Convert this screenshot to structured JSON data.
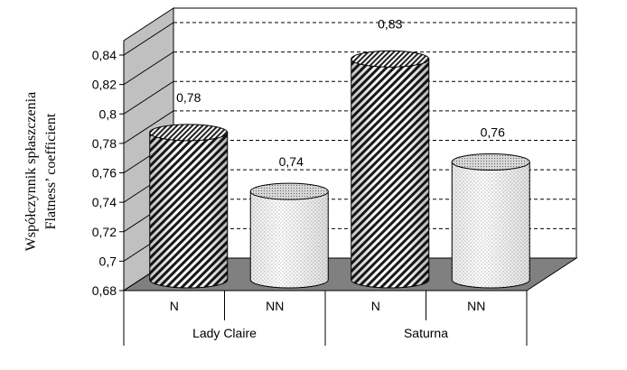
{
  "chart_data": {
    "type": "bar",
    "style": "3d-cylinder",
    "title": "",
    "xlabel": "",
    "ylabel_lines": [
      "Współczynnik  spłaszczenia",
      "Flatness’ coefficient"
    ],
    "ylim": [
      0.68,
      0.84
    ],
    "y_ticks": [
      "0,68",
      "0,7",
      "0,72",
      "0,74",
      "0,76",
      "0,78",
      "0,8",
      "0,82",
      "0,84"
    ],
    "groups": [
      {
        "label": "Lady Claire",
        "categories": [
          "N",
          "NN"
        ]
      },
      {
        "label": "Saturna",
        "categories": [
          "N",
          "NN"
        ]
      }
    ],
    "bars": [
      {
        "group": "Lady Claire",
        "category": "N",
        "value": 0.78,
        "label": "0,78",
        "pattern": "diagonal"
      },
      {
        "group": "Lady Claire",
        "category": "NN",
        "value": 0.74,
        "label": "0,74",
        "pattern": "dots"
      },
      {
        "group": "Saturna",
        "category": "N",
        "value": 0.83,
        "label": "0,83",
        "pattern": "diagonal"
      },
      {
        "group": "Saturna",
        "category": "NN",
        "value": 0.76,
        "label": "0,76",
        "pattern": "dots"
      }
    ],
    "gridlines": "dashed",
    "colors": {
      "wall": "#c0c0c0",
      "floor": "#808080",
      "grid": "#000000"
    }
  }
}
